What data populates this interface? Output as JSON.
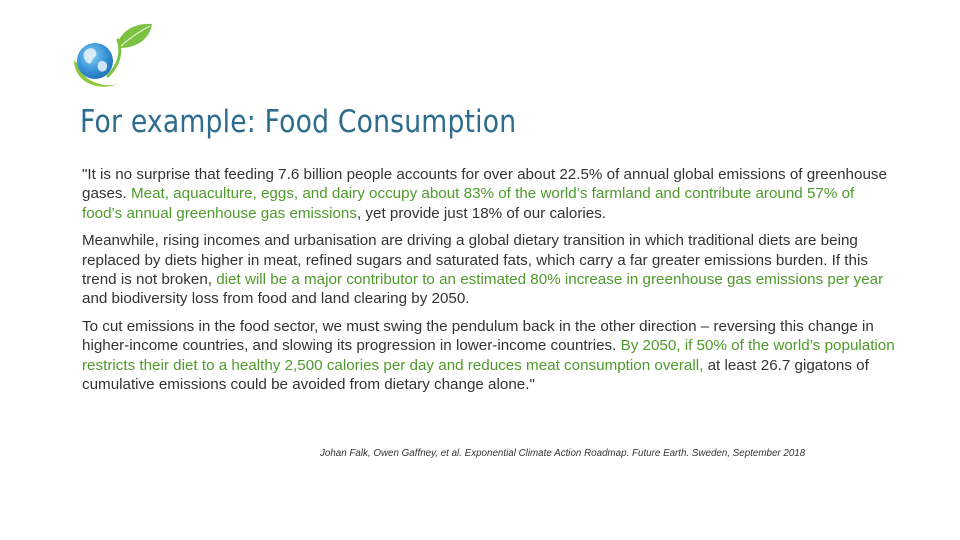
{
  "logo": {
    "icon": "globe-leaf-icon",
    "colors": {
      "leaf": "#7cc242",
      "globe": "#2f8fd6",
      "swoosh": "#8dc63f"
    }
  },
  "title": "For example: Food Consumption",
  "paragraphs": [
    {
      "segments": [
        {
          "text": "\"It is no surprise that feeding 7.6 billion people accounts for over about 22.5% of annual global emissions of greenhouse gases. ",
          "highlight": false
        },
        {
          "text": "Meat, aquaculture, eggs, and dairy occupy about 83% of the world’s farmland and contribute around 57% of food’s annual greenhouse gas emissions",
          "highlight": true
        },
        {
          "text": ", yet provide just 18% of our calories.",
          "highlight": false
        }
      ]
    },
    {
      "segments": [
        {
          "text": "Meanwhile, rising incomes and urbanisation are driving a global dietary transition in which traditional diets are being replaced by diets higher in meat, refined sugars and saturated fats, which carry a far greater emissions burden. If this trend is not broken, ",
          "highlight": false
        },
        {
          "text": "diet will be a major contributor to an estimated 80% increase in greenhouse gas emissions per year",
          "highlight": true
        },
        {
          "text": " and biodiversity loss from food and land clearing by 2050.",
          "highlight": false
        }
      ]
    },
    {
      "segments": [
        {
          "text": "To cut emissions in the food sector, we must swing the pendulum back in the other direction – reversing this change in higher-income countries, and slowing its progression in lower-income countries. ",
          "highlight": false
        },
        {
          "text": "By 2050, if 50% of the world’s population restricts their diet to a healthy 2,500 calories per day and reduces meat consumption overall,",
          "highlight": true
        },
        {
          "text": " at least 26.7 gigatons of cumulative emissions could be avoided from dietary change alone.\"",
          "highlight": false
        }
      ]
    }
  ],
  "citation": "Johan Falk, Owen Gaffney, et al. Exponential Climate Action Roadmap. Future Earth. Sweden, September 2018",
  "colors": {
    "title": "#2e6c8e",
    "text": "#333333",
    "highlight": "#4f9a2c"
  }
}
